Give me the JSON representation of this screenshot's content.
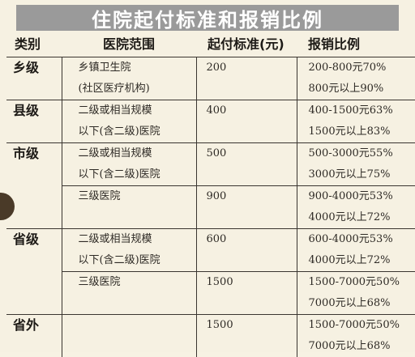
{
  "title": "住院起付标准和报销比例",
  "headers": {
    "category": "类别",
    "scope": "医院范围",
    "start": "起付标准(元)",
    "ratio": "报销比例"
  },
  "rows": [
    {
      "category": "乡级",
      "entries": [
        {
          "scope": [
            "乡镇卫生院",
            "(社区医疗机构)"
          ],
          "start": "200",
          "ratio": [
            "200-800元70%",
            "800元以上90%"
          ]
        }
      ]
    },
    {
      "category": "县级",
      "entries": [
        {
          "scope": [
            "二级或相当规模",
            "以下(含二级)医院"
          ],
          "start": "400",
          "ratio": [
            "400-1500元63%",
            "1500元以上83%"
          ]
        }
      ]
    },
    {
      "category": "市级",
      "entries": [
        {
          "scope": [
            "二级或相当规模",
            "以下(含二级)医院"
          ],
          "start": "500",
          "ratio": [
            "500-3000元55%",
            "3000元以上75%"
          ]
        },
        {
          "scope": [
            "三级医院",
            ""
          ],
          "start": "900",
          "ratio": [
            "900-4000元53%",
            "4000元以上72%"
          ]
        }
      ]
    },
    {
      "category": "省级",
      "entries": [
        {
          "scope": [
            "二级或相当规模",
            "以下(含二级)医院"
          ],
          "start": "600",
          "ratio": [
            "600-4000元53%",
            "4000元以上72%"
          ]
        },
        {
          "scope": [
            "三级医院",
            ""
          ],
          "start": "1500",
          "ratio": [
            "1500-7000元50%",
            "7000元以上68%"
          ]
        }
      ]
    },
    {
      "category": "省外",
      "entries": [
        {
          "scope": [
            "",
            ""
          ],
          "start": "1500",
          "ratio": [
            "1500-7000元50%",
            "7000元以上68%"
          ]
        }
      ]
    }
  ]
}
